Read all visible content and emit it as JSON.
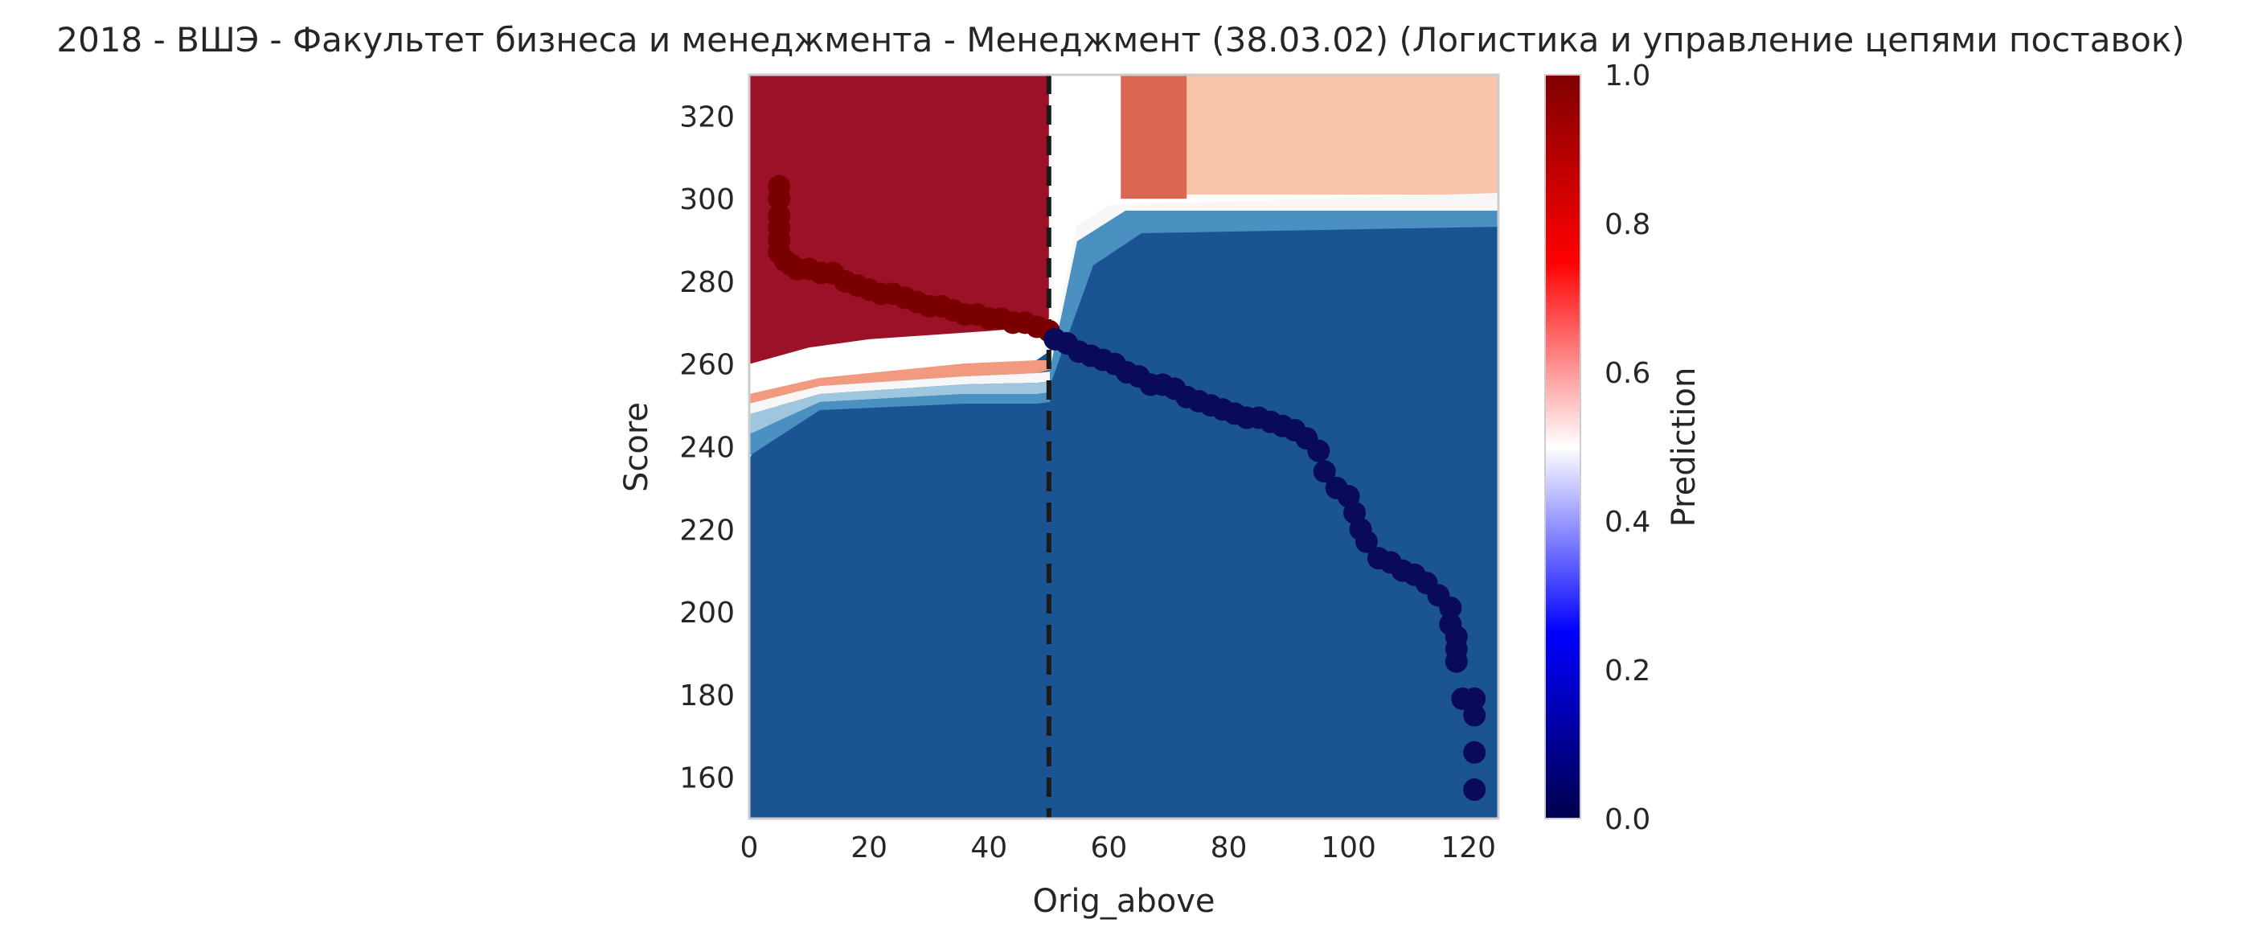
{
  "chart_data": {
    "type": "contour",
    "title": "2018 - ВШЭ - Факультет бизнеса и менеджмента - Менеджмент (38.03.02) (Логистика и управление цепями поставок)",
    "xlabel": "Orig_above",
    "ylabel": "Score",
    "xlim": [
      0,
      125
    ],
    "ylim": [
      150,
      330
    ],
    "xticks": [
      0,
      20,
      40,
      60,
      80,
      100,
      120
    ],
    "yticks": [
      160,
      180,
      200,
      220,
      240,
      260,
      280,
      300,
      320
    ],
    "grid": false,
    "cutoff_line": {
      "x": 50,
      "style": "dashed",
      "color": "#1a1a1a"
    },
    "colorbar": {
      "label": "Prediction",
      "range": [
        0.0,
        1.0
      ],
      "ticks": [
        0.0,
        0.2,
        0.4,
        0.6,
        0.8,
        1.0
      ],
      "colormap": "seismic"
    },
    "contour_regions": [
      {
        "level": 0.95,
        "color": "#9b1127",
        "boundary": [
          [
            0,
            260
          ],
          [
            5,
            262
          ],
          [
            10,
            264
          ],
          [
            20,
            266
          ],
          [
            30,
            267
          ],
          [
            40,
            268
          ],
          [
            48,
            269
          ],
          [
            50,
            271
          ],
          [
            50,
            330
          ],
          [
            0,
            330
          ]
        ]
      },
      {
        "level": 0.85,
        "color": "#dd6553",
        "boundary": [
          [
            62,
            330
          ],
          [
            62,
            300
          ],
          [
            73,
            300
          ],
          [
            73,
            330
          ]
        ]
      },
      {
        "level": 0.7,
        "color": "#f8c4aa",
        "boundary": [
          [
            73,
            330
          ],
          [
            73,
            301
          ],
          [
            125,
            301
          ],
          [
            125,
            330
          ]
        ]
      },
      {
        "level": 0.05,
        "color": "#1b5493",
        "boundary": [
          [
            0,
            237
          ],
          [
            5,
            250
          ],
          [
            10,
            255
          ],
          [
            20,
            256
          ],
          [
            30,
            257
          ],
          [
            40,
            258
          ],
          [
            48,
            261
          ],
          [
            50,
            263
          ],
          [
            52,
            268
          ],
          [
            54,
            280
          ],
          [
            56,
            288
          ],
          [
            60,
            292
          ],
          [
            70,
            293
          ],
          [
            80,
            294
          ],
          [
            125,
            294
          ],
          [
            125,
            150
          ],
          [
            0,
            150
          ]
        ]
      }
    ],
    "scatter_series": [
      {
        "class": "above_cutoff",
        "color": "#7a0000",
        "points": [
          [
            5,
            303
          ],
          [
            5,
            300
          ],
          [
            5,
            296
          ],
          [
            5,
            293
          ],
          [
            5,
            290
          ],
          [
            5,
            287
          ],
          [
            6,
            285
          ],
          [
            7,
            284
          ],
          [
            8,
            283
          ],
          [
            10,
            283
          ],
          [
            12,
            282
          ],
          [
            14,
            282
          ],
          [
            16,
            280
          ],
          [
            18,
            279
          ],
          [
            20,
            278
          ],
          [
            22,
            277
          ],
          [
            24,
            277
          ],
          [
            26,
            276
          ],
          [
            28,
            275
          ],
          [
            30,
            274
          ],
          [
            32,
            274
          ],
          [
            34,
            273
          ],
          [
            36,
            272
          ],
          [
            38,
            272
          ],
          [
            40,
            271
          ],
          [
            42,
            271
          ],
          [
            44,
            270
          ],
          [
            46,
            270
          ],
          [
            48,
            269
          ],
          [
            50,
            268
          ]
        ]
      },
      {
        "class": "below_cutoff",
        "color": "#0a0a5a",
        "points": [
          [
            51,
            266
          ],
          [
            53,
            265
          ],
          [
            55,
            263
          ],
          [
            57,
            262
          ],
          [
            59,
            261
          ],
          [
            61,
            260
          ],
          [
            63,
            258
          ],
          [
            65,
            257
          ],
          [
            67,
            255
          ],
          [
            69,
            255
          ],
          [
            71,
            254
          ],
          [
            73,
            252
          ],
          [
            75,
            251
          ],
          [
            77,
            250
          ],
          [
            79,
            249
          ],
          [
            81,
            248
          ],
          [
            83,
            247
          ],
          [
            85,
            247
          ],
          [
            87,
            246
          ],
          [
            89,
            245
          ],
          [
            91,
            244
          ],
          [
            93,
            242
          ],
          [
            95,
            239
          ],
          [
            96,
            234
          ],
          [
            98,
            230
          ],
          [
            100,
            228
          ],
          [
            101,
            224
          ],
          [
            102,
            220
          ],
          [
            103,
            217
          ],
          [
            105,
            213
          ],
          [
            107,
            212
          ],
          [
            109,
            210
          ],
          [
            111,
            209
          ],
          [
            113,
            207
          ],
          [
            115,
            204
          ],
          [
            117,
            201
          ],
          [
            117,
            197
          ],
          [
            118,
            194
          ],
          [
            118,
            191
          ],
          [
            118,
            188
          ],
          [
            119,
            179
          ],
          [
            121,
            179
          ],
          [
            121,
            175
          ],
          [
            121,
            166
          ],
          [
            121,
            157
          ]
        ]
      }
    ]
  }
}
